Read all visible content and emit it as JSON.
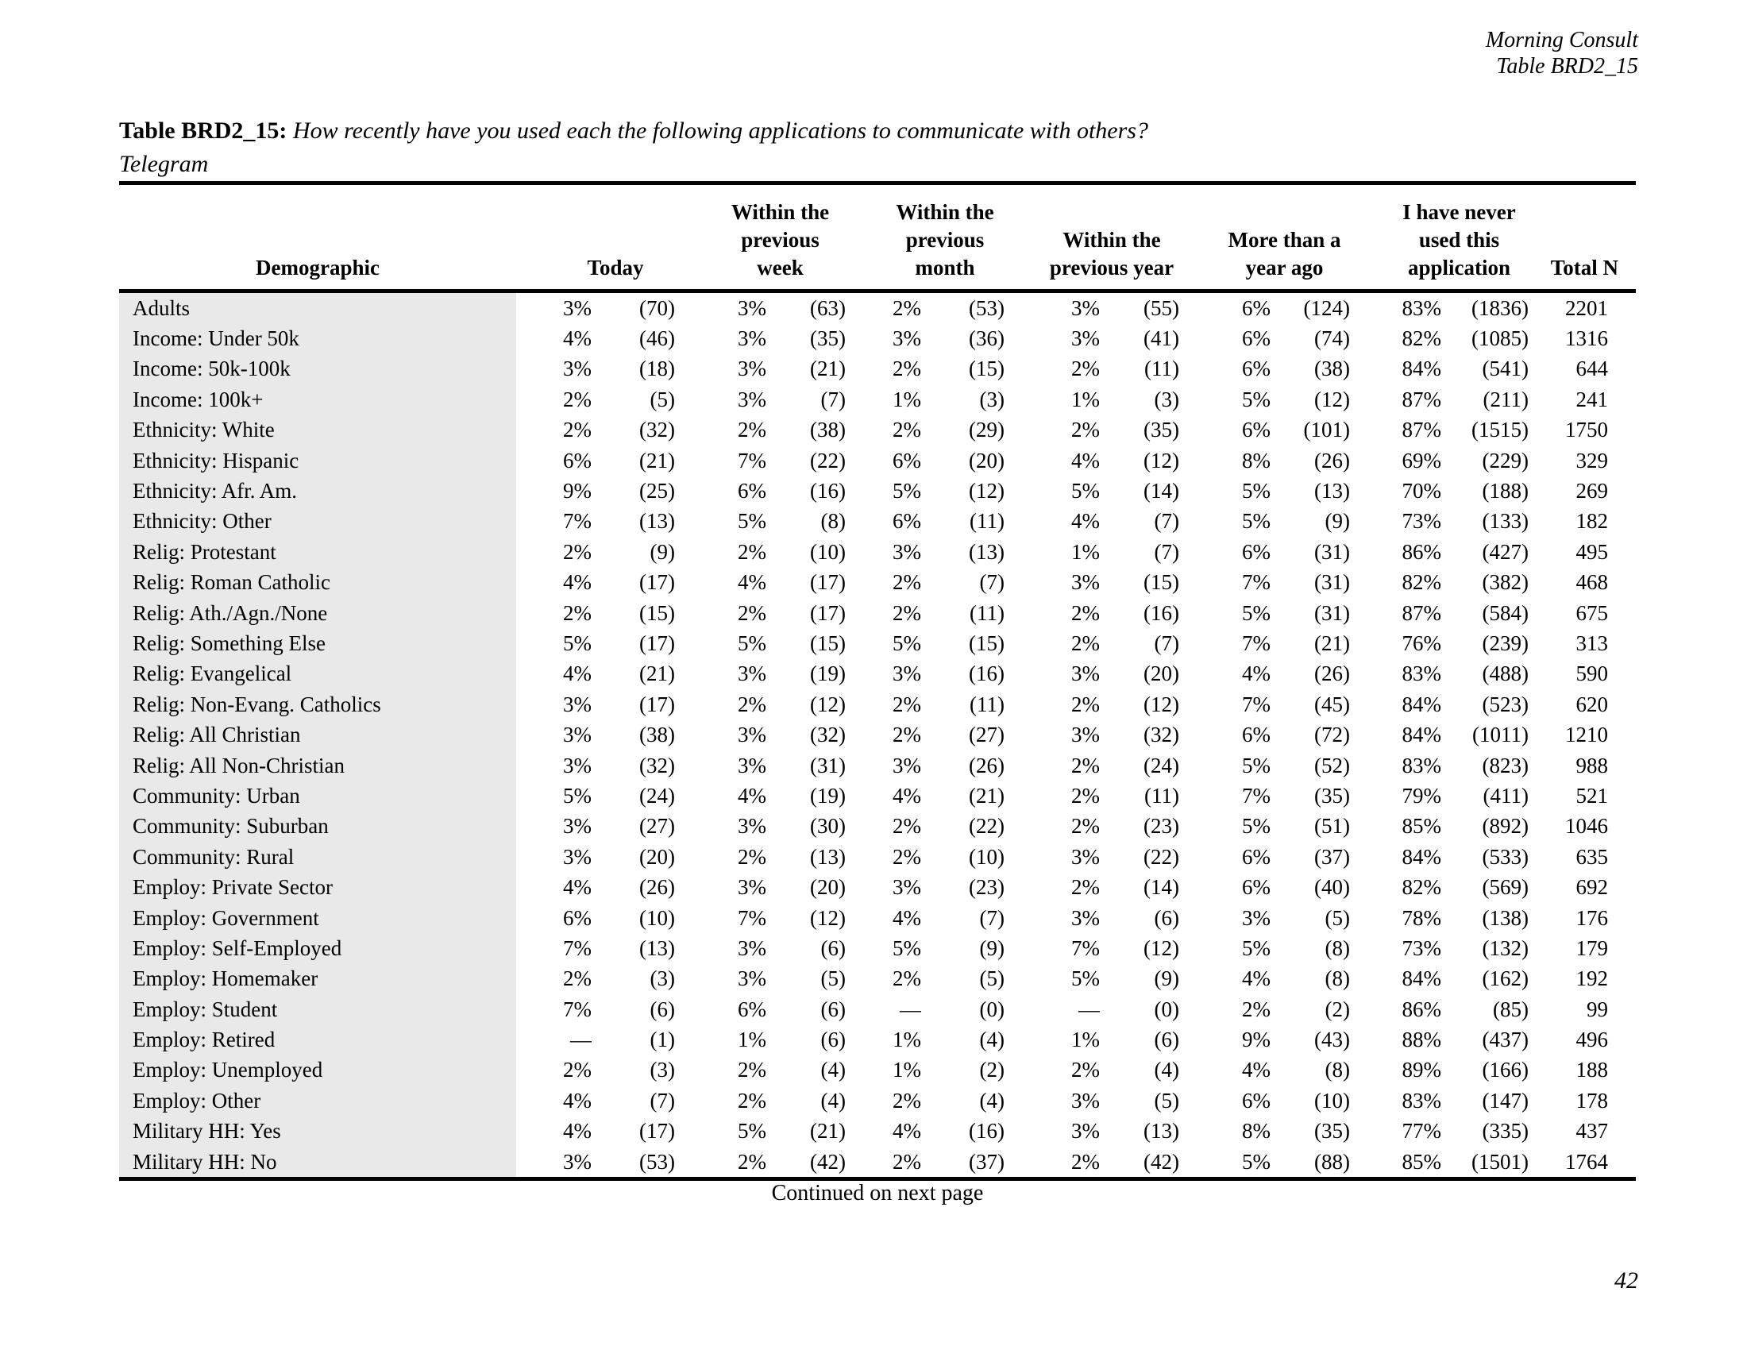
{
  "page_header": {
    "source": "Morning Consult",
    "table_ref": "Table BRD2_15"
  },
  "title": {
    "label": "Table BRD2_15:",
    "question": "How recently have you used each the following applications to communicate with others?",
    "subtitle": "Telegram"
  },
  "table": {
    "columns": {
      "demographic": "Demographic",
      "today": "Today",
      "week_lines": [
        "Within the",
        "previous",
        "week"
      ],
      "month_lines": [
        "Within the",
        "previous",
        "month"
      ],
      "year_lines": [
        "Within the",
        "previous year"
      ],
      "more_lines": [
        "More than a",
        "year ago"
      ],
      "never_lines": [
        "I have never",
        "used this",
        "application"
      ],
      "total": "Total N"
    },
    "rows": [
      [
        "Adults",
        "3%",
        "(70)",
        "3%",
        "(63)",
        "2%",
        "(53)",
        "3%",
        "(55)",
        "6%",
        "(124)",
        "83%",
        "(1836)",
        "2201"
      ],
      [
        "Income: Under 50k",
        "4%",
        "(46)",
        "3%",
        "(35)",
        "3%",
        "(36)",
        "3%",
        "(41)",
        "6%",
        "(74)",
        "82%",
        "(1085)",
        "1316"
      ],
      [
        "Income: 50k-100k",
        "3%",
        "(18)",
        "3%",
        "(21)",
        "2%",
        "(15)",
        "2%",
        "(11)",
        "6%",
        "(38)",
        "84%",
        "(541)",
        "644"
      ],
      [
        "Income: 100k+",
        "2%",
        "(5)",
        "3%",
        "(7)",
        "1%",
        "(3)",
        "1%",
        "(3)",
        "5%",
        "(12)",
        "87%",
        "(211)",
        "241"
      ],
      [
        "Ethnicity: White",
        "2%",
        "(32)",
        "2%",
        "(38)",
        "2%",
        "(29)",
        "2%",
        "(35)",
        "6%",
        "(101)",
        "87%",
        "(1515)",
        "1750"
      ],
      [
        "Ethnicity: Hispanic",
        "6%",
        "(21)",
        "7%",
        "(22)",
        "6%",
        "(20)",
        "4%",
        "(12)",
        "8%",
        "(26)",
        "69%",
        "(229)",
        "329"
      ],
      [
        "Ethnicity: Afr. Am.",
        "9%",
        "(25)",
        "6%",
        "(16)",
        "5%",
        "(12)",
        "5%",
        "(14)",
        "5%",
        "(13)",
        "70%",
        "(188)",
        "269"
      ],
      [
        "Ethnicity: Other",
        "7%",
        "(13)",
        "5%",
        "(8)",
        "6%",
        "(11)",
        "4%",
        "(7)",
        "5%",
        "(9)",
        "73%",
        "(133)",
        "182"
      ],
      [
        "Relig: Protestant",
        "2%",
        "(9)",
        "2%",
        "(10)",
        "3%",
        "(13)",
        "1%",
        "(7)",
        "6%",
        "(31)",
        "86%",
        "(427)",
        "495"
      ],
      [
        "Relig: Roman Catholic",
        "4%",
        "(17)",
        "4%",
        "(17)",
        "2%",
        "(7)",
        "3%",
        "(15)",
        "7%",
        "(31)",
        "82%",
        "(382)",
        "468"
      ],
      [
        "Relig: Ath./Agn./None",
        "2%",
        "(15)",
        "2%",
        "(17)",
        "2%",
        "(11)",
        "2%",
        "(16)",
        "5%",
        "(31)",
        "87%",
        "(584)",
        "675"
      ],
      [
        "Relig: Something Else",
        "5%",
        "(17)",
        "5%",
        "(15)",
        "5%",
        "(15)",
        "2%",
        "(7)",
        "7%",
        "(21)",
        "76%",
        "(239)",
        "313"
      ],
      [
        "Relig: Evangelical",
        "4%",
        "(21)",
        "3%",
        "(19)",
        "3%",
        "(16)",
        "3%",
        "(20)",
        "4%",
        "(26)",
        "83%",
        "(488)",
        "590"
      ],
      [
        "Relig: Non-Evang. Catholics",
        "3%",
        "(17)",
        "2%",
        "(12)",
        "2%",
        "(11)",
        "2%",
        "(12)",
        "7%",
        "(45)",
        "84%",
        "(523)",
        "620"
      ],
      [
        "Relig: All Christian",
        "3%",
        "(38)",
        "3%",
        "(32)",
        "2%",
        "(27)",
        "3%",
        "(32)",
        "6%",
        "(72)",
        "84%",
        "(1011)",
        "1210"
      ],
      [
        "Relig: All Non-Christian",
        "3%",
        "(32)",
        "3%",
        "(31)",
        "3%",
        "(26)",
        "2%",
        "(24)",
        "5%",
        "(52)",
        "83%",
        "(823)",
        "988"
      ],
      [
        "Community: Urban",
        "5%",
        "(24)",
        "4%",
        "(19)",
        "4%",
        "(21)",
        "2%",
        "(11)",
        "7%",
        "(35)",
        "79%",
        "(411)",
        "521"
      ],
      [
        "Community: Suburban",
        "3%",
        "(27)",
        "3%",
        "(30)",
        "2%",
        "(22)",
        "2%",
        "(23)",
        "5%",
        "(51)",
        "85%",
        "(892)",
        "1046"
      ],
      [
        "Community: Rural",
        "3%",
        "(20)",
        "2%",
        "(13)",
        "2%",
        "(10)",
        "3%",
        "(22)",
        "6%",
        "(37)",
        "84%",
        "(533)",
        "635"
      ],
      [
        "Employ: Private Sector",
        "4%",
        "(26)",
        "3%",
        "(20)",
        "3%",
        "(23)",
        "2%",
        "(14)",
        "6%",
        "(40)",
        "82%",
        "(569)",
        "692"
      ],
      [
        "Employ: Government",
        "6%",
        "(10)",
        "7%",
        "(12)",
        "4%",
        "(7)",
        "3%",
        "(6)",
        "3%",
        "(5)",
        "78%",
        "(138)",
        "176"
      ],
      [
        "Employ: Self-Employed",
        "7%",
        "(13)",
        "3%",
        "(6)",
        "5%",
        "(9)",
        "7%",
        "(12)",
        "5%",
        "(8)",
        "73%",
        "(132)",
        "179"
      ],
      [
        "Employ: Homemaker",
        "2%",
        "(3)",
        "3%",
        "(5)",
        "2%",
        "(5)",
        "5%",
        "(9)",
        "4%",
        "(8)",
        "84%",
        "(162)",
        "192"
      ],
      [
        "Employ: Student",
        "7%",
        "(6)",
        "6%",
        "(6)",
        "—",
        "(0)",
        "—",
        "(0)",
        "2%",
        "(2)",
        "86%",
        "(85)",
        "99"
      ],
      [
        "Employ: Retired",
        "—",
        "(1)",
        "1%",
        "(6)",
        "1%",
        "(4)",
        "1%",
        "(6)",
        "9%",
        "(43)",
        "88%",
        "(437)",
        "496"
      ],
      [
        "Employ: Unemployed",
        "2%",
        "(3)",
        "2%",
        "(4)",
        "1%",
        "(2)",
        "2%",
        "(4)",
        "4%",
        "(8)",
        "89%",
        "(166)",
        "188"
      ],
      [
        "Employ: Other",
        "4%",
        "(7)",
        "2%",
        "(4)",
        "2%",
        "(4)",
        "3%",
        "(5)",
        "6%",
        "(10)",
        "83%",
        "(147)",
        "178"
      ],
      [
        "Military HH: Yes",
        "4%",
        "(17)",
        "5%",
        "(21)",
        "4%",
        "(16)",
        "3%",
        "(13)",
        "8%",
        "(35)",
        "77%",
        "(335)",
        "437"
      ],
      [
        "Military HH: No",
        "3%",
        "(53)",
        "2%",
        "(42)",
        "2%",
        "(37)",
        "2%",
        "(42)",
        "5%",
        "(88)",
        "85%",
        "(1501)",
        "1764"
      ]
    ]
  },
  "footer": {
    "continued": "Continued on next page",
    "page_number": "42"
  },
  "colors": {
    "demographic_column_bg": "#e9e9e9",
    "rule": "#000000",
    "text": "#000000"
  }
}
